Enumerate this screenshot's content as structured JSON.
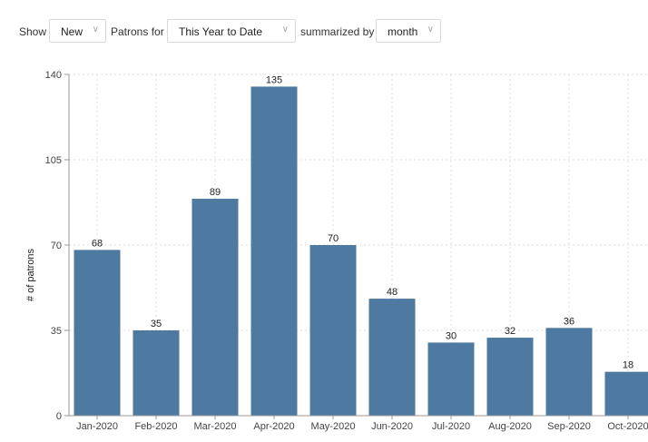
{
  "filters": {
    "show_label": "Show",
    "show_value": "New",
    "patrons_for_label": "Patrons for",
    "period_value": "This Year to Date",
    "summarized_by_label": "summarized by",
    "interval_value": "month"
  },
  "colors": {
    "bar": "#4e79a1",
    "grid": "#dcdcdc",
    "axis": "#999999"
  },
  "chart_data": {
    "type": "bar",
    "categories": [
      "Jan-2020",
      "Feb-2020",
      "Mar-2020",
      "Apr-2020",
      "May-2020",
      "Jun-2020",
      "Jul-2020",
      "Aug-2020",
      "Sep-2020",
      "Oct-2020"
    ],
    "values": [
      68,
      35,
      89,
      135,
      70,
      48,
      30,
      32,
      36,
      18
    ],
    "ylabel": "# of patrons",
    "ylim": [
      0,
      140
    ],
    "yticks": [
      0,
      35,
      70,
      105,
      140
    ],
    "grid": true
  }
}
